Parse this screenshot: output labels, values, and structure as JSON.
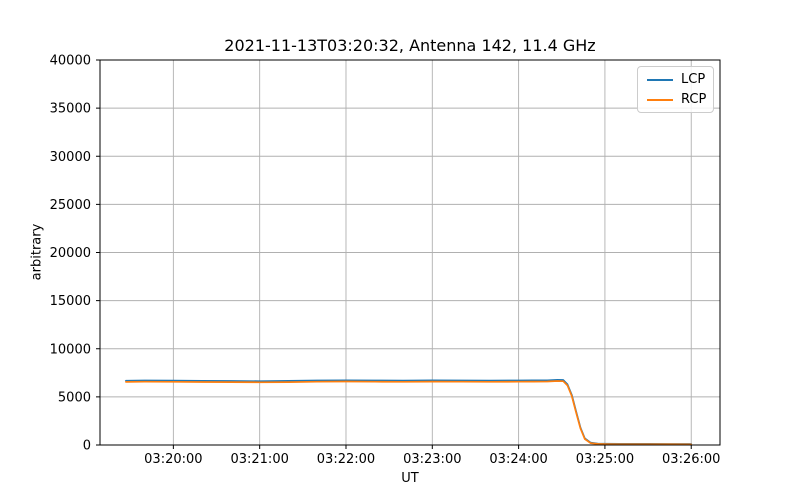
{
  "chart_data": {
    "type": "line",
    "title": "2021-11-13T03:20:32, Antenna 142, 11.4 GHz",
    "xlabel": "UT",
    "ylabel": "arbitrary",
    "xlim": [
      "03:19:09",
      "03:26:20"
    ],
    "ylim": [
      0,
      40000
    ],
    "x_ticks": [
      "03:20:00",
      "03:21:00",
      "03:22:00",
      "03:23:00",
      "03:24:00",
      "03:25:00",
      "03:26:00"
    ],
    "y_ticks": [
      0,
      5000,
      10000,
      15000,
      20000,
      25000,
      30000,
      35000,
      40000
    ],
    "grid": true,
    "grid_color": "#b0b0b0",
    "legend_position": "upper right",
    "x": [
      "03:19:27",
      "03:19:40",
      "03:20:00",
      "03:20:20",
      "03:20:40",
      "03:21:00",
      "03:21:20",
      "03:21:40",
      "03:22:00",
      "03:22:20",
      "03:22:40",
      "03:23:00",
      "03:23:20",
      "03:23:40",
      "03:24:00",
      "03:24:10",
      "03:24:20",
      "03:24:27",
      "03:24:31",
      "03:24:34",
      "03:24:37",
      "03:24:40",
      "03:24:43",
      "03:24:46",
      "03:24:50",
      "03:24:55",
      "03:25:00",
      "03:25:10",
      "03:25:30",
      "03:25:45",
      "03:26:00"
    ],
    "series": [
      {
        "name": "LCP",
        "color": "#1f77b4",
        "y": [
          6680,
          6700,
          6690,
          6670,
          6650,
          6630,
          6660,
          6700,
          6720,
          6700,
          6690,
          6710,
          6700,
          6690,
          6700,
          6710,
          6720,
          6770,
          6750,
          6300,
          5200,
          3500,
          1800,
          700,
          250,
          150,
          130,
          115,
          110,
          105,
          100
        ]
      },
      {
        "name": "RCP",
        "color": "#ff7f0e",
        "y": [
          6560,
          6580,
          6570,
          6550,
          6530,
          6510,
          6540,
          6580,
          6600,
          6580,
          6570,
          6590,
          6580,
          6570,
          6580,
          6590,
          6600,
          6650,
          6630,
          6180,
          5080,
          3380,
          1700,
          620,
          200,
          110,
          95,
          85,
          80,
          78,
          75
        ]
      }
    ]
  }
}
